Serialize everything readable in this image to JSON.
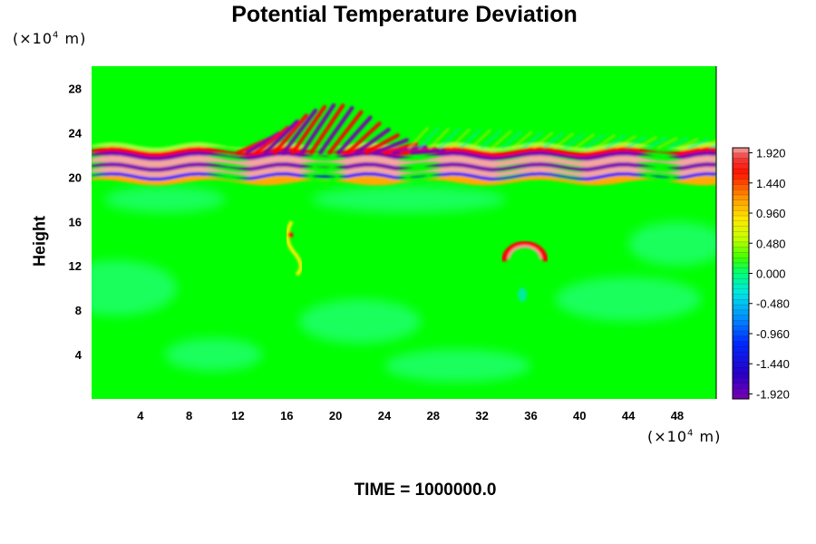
{
  "title": "Potential Temperature Deviation",
  "time_label": "TIME = 1000000.0",
  "colors": {
    "background": "#00ff00",
    "warm": "#ff0000",
    "warm_extreme": "#f4a6a0",
    "cold": "#0000ff",
    "cold_extreme": "#7a00b0"
  },
  "chart_data": {
    "type": "heatmap",
    "title": "Potential Temperature Deviation",
    "xlabel": "",
    "ylabel": "Height",
    "x_unit_prefix": "(×10",
    "x_unit_exp": "4",
    "x_unit_suffix": " m)",
    "y_unit_prefix": "(×10",
    "y_unit_exp": "4",
    "y_unit_suffix": " m)",
    "xlim": [
      0,
      51.2
    ],
    "ylim": [
      0,
      30
    ],
    "x_ticks": [
      "4",
      "8",
      "12",
      "16",
      "20",
      "24",
      "28",
      "32",
      "36",
      "40",
      "44",
      "48"
    ],
    "y_ticks": [
      "4",
      "8",
      "12",
      "16",
      "20",
      "24",
      "28"
    ],
    "colorbar": {
      "min": -2.0,
      "max": 2.0,
      "tick_labels": [
        "1.920",
        "1.440",
        "0.960",
        "0.480",
        "0.000",
        "-0.480",
        "-0.960",
        "-1.440",
        "-1.920"
      ],
      "tick_values": [
        1.92,
        1.44,
        0.96,
        0.48,
        0.0,
        -0.48,
        -0.96,
        -1.44,
        -1.92
      ]
    },
    "features": [
      {
        "name": "warm band",
        "x_range": [
          0,
          51.2
        ],
        "y_center": 21.4,
        "value": 2.0
      },
      {
        "name": "cold band",
        "x_range": [
          0,
          51.2
        ],
        "y_center": 20.8,
        "value": -2.0
      },
      {
        "name": "wave train",
        "x_range": [
          13,
          26
        ],
        "y_range": [
          22,
          27
        ],
        "amplitude": 1.6
      },
      {
        "name": "thermal bubble",
        "x_center": 35.5,
        "y_center": 12.9,
        "value": 1.9
      },
      {
        "name": "plume",
        "x_center": 16,
        "y_center": 14,
        "value": 1.0
      }
    ]
  }
}
